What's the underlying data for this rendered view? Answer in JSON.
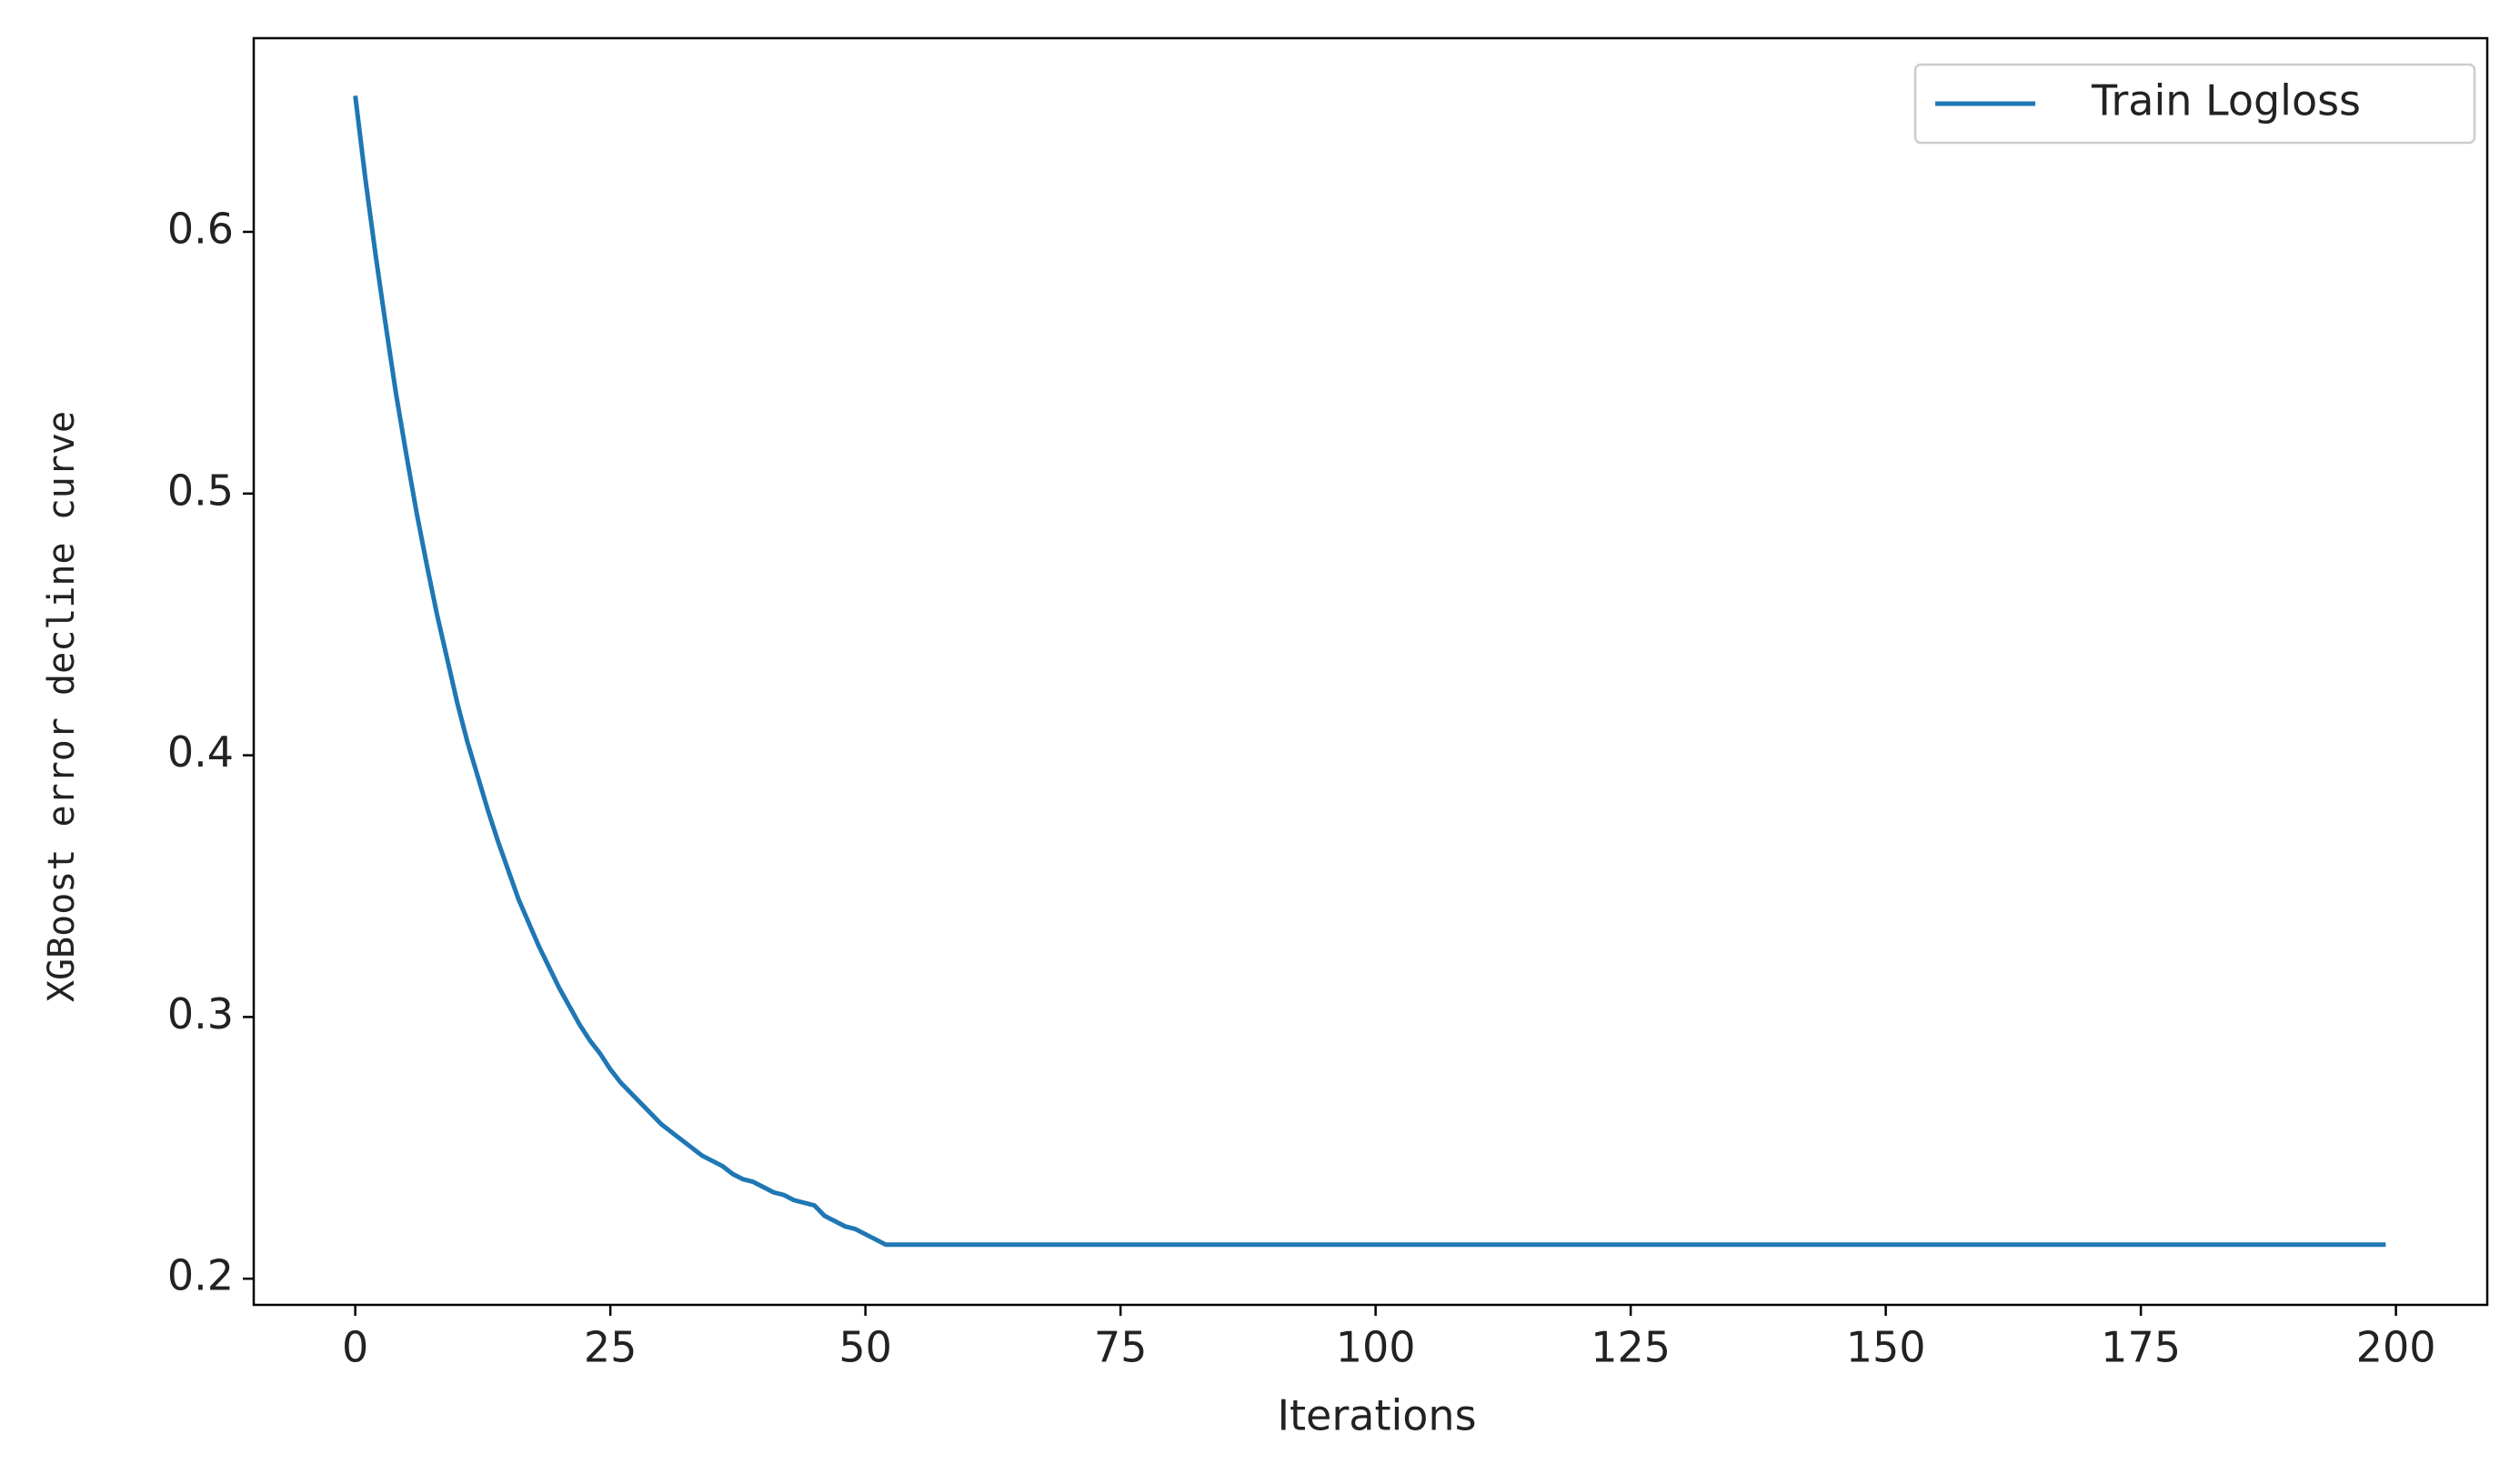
{
  "chart_data": {
    "type": "line",
    "xlabel": "Iterations",
    "ylabel": "XGBoost error decline curve",
    "x": [
      0,
      1,
      2,
      3,
      4,
      5,
      6,
      7,
      8,
      9,
      10,
      11,
      12,
      13,
      14,
      15,
      16,
      17,
      18,
      19,
      20,
      21,
      22,
      23,
      24,
      25,
      26,
      27,
      28,
      29,
      30,
      31,
      32,
      33,
      34,
      35,
      36,
      37,
      38,
      39,
      40,
      41,
      42,
      43,
      44,
      45,
      46,
      47,
      48,
      49,
      50,
      51,
      52,
      53,
      54,
      55,
      56,
      57,
      58,
      59,
      60,
      61,
      62,
      63,
      64,
      65,
      66,
      67,
      68,
      69,
      70,
      71,
      72,
      73,
      74,
      75,
      76,
      77,
      78,
      79,
      80,
      81,
      82,
      83,
      84,
      85,
      86,
      87,
      88,
      89,
      90,
      91,
      92,
      93,
      94,
      95,
      96,
      97,
      98,
      99,
      100,
      101,
      102,
      103,
      104,
      105,
      106,
      107,
      108,
      109,
      110,
      111,
      112,
      113,
      114,
      115,
      116,
      117,
      118,
      119,
      120,
      121,
      122,
      123,
      124,
      125,
      126,
      127,
      128,
      129,
      130,
      131,
      132,
      133,
      134,
      135,
      136,
      137,
      138,
      139,
      140,
      141,
      142,
      143,
      144,
      145,
      146,
      147,
      148,
      149,
      150,
      151,
      152,
      153,
      154,
      155,
      156,
      157,
      158,
      159,
      160,
      161,
      162,
      163,
      164,
      165,
      166,
      167,
      168,
      169,
      170,
      171,
      172,
      173,
      174,
      175,
      176,
      177,
      178,
      179,
      180,
      181,
      182,
      183,
      184,
      185,
      186,
      187,
      188,
      189,
      190,
      191,
      192,
      193,
      194,
      195,
      196,
      197,
      198,
      199
    ],
    "series": [
      {
        "name": "Train Logloss",
        "color": "#1f77b4",
        "values": [
          0.652,
          0.62,
          0.591,
          0.564,
          0.538,
          0.515,
          0.493,
          0.473,
          0.454,
          0.437,
          0.42,
          0.405,
          0.392,
          0.379,
          0.367,
          0.356,
          0.345,
          0.336,
          0.327,
          0.319,
          0.311,
          0.304,
          0.297,
          0.291,
          0.286,
          0.28,
          0.275,
          0.271,
          0.267,
          0.263,
          0.259,
          0.256,
          0.253,
          0.25,
          0.247,
          0.245,
          0.243,
          0.24,
          0.238,
          0.237,
          0.235,
          0.233,
          0.232,
          0.23,
          0.229,
          0.228,
          0.224,
          0.222,
          0.22,
          0.219,
          0.217,
          0.215,
          0.213,
          0.213,
          0.213,
          0.213,
          0.213,
          0.213,
          0.213,
          0.213,
          0.213,
          0.213,
          0.213,
          0.213,
          0.213,
          0.213,
          0.213,
          0.213,
          0.213,
          0.213,
          0.213,
          0.213,
          0.213,
          0.213,
          0.213,
          0.213,
          0.213,
          0.213,
          0.213,
          0.213,
          0.213,
          0.213,
          0.213,
          0.213,
          0.213,
          0.213,
          0.213,
          0.213,
          0.213,
          0.213,
          0.213,
          0.213,
          0.213,
          0.213,
          0.213,
          0.213,
          0.213,
          0.213,
          0.213,
          0.213,
          0.213,
          0.213,
          0.213,
          0.213,
          0.213,
          0.213,
          0.213,
          0.213,
          0.213,
          0.213,
          0.213,
          0.213,
          0.213,
          0.213,
          0.213,
          0.213,
          0.213,
          0.213,
          0.213,
          0.213,
          0.213,
          0.213,
          0.213,
          0.213,
          0.213,
          0.213,
          0.213,
          0.213,
          0.213,
          0.213,
          0.213,
          0.213,
          0.213,
          0.213,
          0.213,
          0.213,
          0.213,
          0.213,
          0.213,
          0.213,
          0.213,
          0.213,
          0.213,
          0.213,
          0.213,
          0.213,
          0.213,
          0.213,
          0.213,
          0.213,
          0.213,
          0.213,
          0.213,
          0.213,
          0.213,
          0.213,
          0.213,
          0.213,
          0.213,
          0.213,
          0.213,
          0.213,
          0.213,
          0.213,
          0.213,
          0.213,
          0.213,
          0.213,
          0.213,
          0.213,
          0.213,
          0.213,
          0.213,
          0.213,
          0.213,
          0.213,
          0.213,
          0.213,
          0.213,
          0.213,
          0.213,
          0.213,
          0.213,
          0.213,
          0.213,
          0.213,
          0.213,
          0.213,
          0.213,
          0.213,
          0.213,
          0.213,
          0.213,
          0.213,
          0.213,
          0.213,
          0.213,
          0.213,
          0.213,
          0.213
        ]
      }
    ],
    "xlim": [
      -9.95,
      208.95
    ],
    "xticks": [
      0,
      25,
      50,
      75,
      100,
      125,
      150,
      175,
      200
    ],
    "ylim": [
      0.19,
      0.674
    ],
    "yticks": [
      0.2,
      0.3,
      0.4,
      0.5,
      0.6
    ],
    "grid": false,
    "legend": "upper right"
  }
}
